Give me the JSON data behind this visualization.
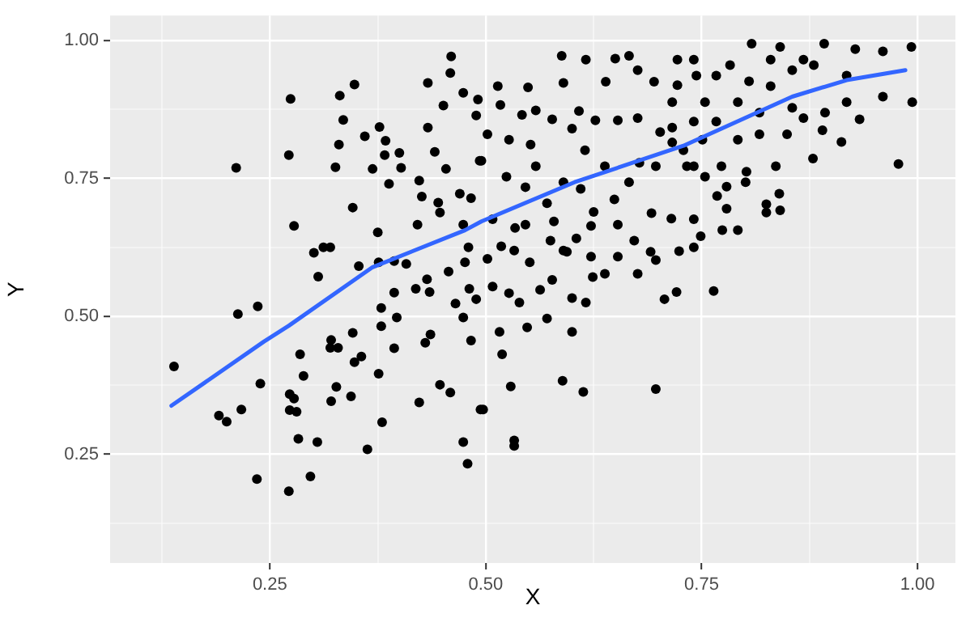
{
  "chart_data": {
    "type": "scatter",
    "xlabel": "X",
    "ylabel": "Y",
    "xlim": [
      0.065,
      1.044
    ],
    "ylim": [
      0.053,
      1.045
    ],
    "xticks": [
      {
        "value": 0.125,
        "label": null
      },
      {
        "value": 0.25,
        "label": "0.25"
      },
      {
        "value": 0.375,
        "label": null
      },
      {
        "value": 0.5,
        "label": "0.50"
      },
      {
        "value": 0.625,
        "label": null
      },
      {
        "value": 0.75,
        "label": "0.75"
      },
      {
        "value": 0.875,
        "label": null
      },
      {
        "value": 1,
        "label": "1.00"
      }
    ],
    "yticks": [
      {
        "value": 0.125,
        "label": null
      },
      {
        "value": 0.25,
        "label": "0.25"
      },
      {
        "value": 0.375,
        "label": null
      },
      {
        "value": 0.5,
        "label": "0.50"
      },
      {
        "value": 0.625,
        "label": null
      },
      {
        "value": 0.75,
        "label": "0.75"
      },
      {
        "value": 0.875,
        "label": null
      },
      {
        "value": 1,
        "label": "1.00"
      }
    ],
    "grid": true,
    "legend": false,
    "series": [
      {
        "marker": "circle",
        "color": "#000000",
        "x": [
          0.139,
          0.191,
          0.2,
          0.217,
          0.213,
          0.235,
          0.239,
          0.272,
          0.273,
          0.273,
          0.281,
          0.278,
          0.283,
          0.285,
          0.289,
          0.297,
          0.305,
          0.321,
          0.32,
          0.321,
          0.327,
          0.329,
          0.344,
          0.346,
          0.348,
          0.356,
          0.363,
          0.376,
          0.379,
          0.38,
          0.394,
          0.397,
          0.423,
          0.43,
          0.436,
          0.447,
          0.459,
          0.474,
          0.479,
          0.483,
          0.494,
          0.474,
          0.497,
          0.516,
          0.548,
          0.571,
          0.519,
          0.529,
          0.533,
          0.533,
          0.589,
          0.613,
          0.6,
          0.697,
          0.211,
          0.236,
          0.272,
          0.274,
          0.278,
          0.301,
          0.312,
          0.32,
          0.306,
          0.331,
          0.348,
          0.335,
          0.33,
          0.326,
          0.346,
          0.36,
          0.369,
          0.377,
          0.384,
          0.383,
          0.4,
          0.402,
          0.388,
          0.375,
          0.353,
          0.376,
          0.394,
          0.408,
          0.394,
          0.419,
          0.379,
          0.423,
          0.426,
          0.421,
          0.433,
          0.433,
          0.451,
          0.459,
          0.46,
          0.474,
          0.441,
          0.454,
          0.445,
          0.447,
          0.435,
          0.432,
          0.457,
          0.47,
          0.474,
          0.48,
          0.476,
          0.481,
          0.465,
          0.491,
          0.489,
          0.493,
          0.588,
          0.616,
          0.65,
          0.666,
          0.808,
          0.841,
          0.892,
          0.928,
          0.96,
          0.993,
          0.994,
          0.978,
          0.879,
          0.912,
          0.89,
          0.933,
          0.96,
          0.836,
          0.84,
          0.825,
          0.841,
          0.825,
          0.764,
          0.749,
          0.741,
          0.715,
          0.692,
          0.672,
          0.697,
          0.691,
          0.724,
          0.707,
          0.676,
          0.721,
          0.653,
          0.622,
          0.605,
          0.59,
          0.638,
          0.624,
          0.616,
          0.6,
          0.577,
          0.563,
          0.539,
          0.527,
          0.508,
          0.489,
          0.518,
          0.546,
          0.579,
          0.594,
          0.533,
          0.502,
          0.551,
          0.625,
          0.61,
          0.649,
          0.666,
          0.678,
          0.697,
          0.741,
          0.773,
          0.801,
          0.802,
          0.779,
          0.768,
          0.754,
          0.733,
          0.729,
          0.716,
          0.751,
          0.792,
          0.817,
          0.849,
          0.767,
          0.741,
          0.716,
          0.702,
          0.676,
          0.653,
          0.627,
          0.608,
          0.6,
          0.577,
          0.558,
          0.542,
          0.549,
          0.59,
          0.639,
          0.676,
          0.695,
          0.722,
          0.744,
          0.767,
          0.783,
          0.805,
          0.83,
          0.855,
          0.88,
          0.918,
          0.83,
          0.868,
          0.741,
          0.722,
          0.716,
          0.754,
          0.792,
          0.817,
          0.855,
          0.893,
          0.918,
          0.868,
          0.514,
          0.517,
          0.502,
          0.527,
          0.552,
          0.558,
          0.495,
          0.524,
          0.546,
          0.571,
          0.59,
          0.638,
          0.615,
          0.483,
          0.508,
          0.534,
          0.575,
          0.622,
          0.653,
          0.741,
          0.779,
          0.792,
          0.774
        ],
        "values": [
          0.409,
          0.32,
          0.309,
          0.331,
          0.504,
          0.205,
          0.378,
          0.183,
          0.359,
          0.33,
          0.327,
          0.351,
          0.278,
          0.431,
          0.392,
          0.21,
          0.272,
          0.457,
          0.443,
          0.346,
          0.372,
          0.443,
          0.355,
          0.47,
          0.417,
          0.427,
          0.259,
          0.396,
          0.482,
          0.308,
          0.442,
          0.498,
          0.344,
          0.452,
          0.467,
          0.376,
          0.362,
          0.272,
          0.233,
          0.456,
          0.331,
          0.498,
          0.331,
          0.472,
          0.48,
          0.496,
          0.431,
          0.373,
          0.275,
          0.265,
          0.383,
          0.363,
          0.472,
          0.368,
          0.769,
          0.518,
          0.792,
          0.894,
          0.664,
          0.615,
          0.625,
          0.625,
          0.572,
          0.9,
          0.92,
          0.856,
          0.811,
          0.77,
          0.697,
          0.826,
          0.767,
          0.843,
          0.818,
          0.792,
          0.796,
          0.769,
          0.74,
          0.652,
          0.591,
          0.598,
          0.6,
          0.595,
          0.543,
          0.55,
          0.515,
          0.746,
          0.717,
          0.666,
          0.842,
          0.923,
          0.882,
          0.941,
          0.971,
          0.905,
          0.798,
          0.767,
          0.706,
          0.688,
          0.544,
          0.567,
          0.581,
          0.722,
          0.666,
          0.625,
          0.598,
          0.55,
          0.523,
          0.893,
          0.864,
          0.782,
          0.972,
          0.965,
          0.967,
          0.972,
          0.994,
          0.988,
          0.994,
          0.984,
          0.98,
          0.988,
          0.888,
          0.776,
          0.786,
          0.816,
          0.837,
          0.857,
          0.898,
          0.772,
          0.722,
          0.703,
          0.692,
          0.688,
          0.546,
          0.645,
          0.625,
          0.677,
          0.687,
          0.637,
          0.602,
          0.617,
          0.618,
          0.531,
          0.577,
          0.544,
          0.666,
          0.664,
          0.641,
          0.619,
          0.577,
          0.571,
          0.525,
          0.533,
          0.566,
          0.548,
          0.525,
          0.542,
          0.554,
          0.531,
          0.627,
          0.666,
          0.672,
          0.617,
          0.619,
          0.604,
          0.598,
          0.689,
          0.731,
          0.712,
          0.743,
          0.778,
          0.772,
          0.772,
          0.772,
          0.743,
          0.762,
          0.735,
          0.718,
          0.753,
          0.772,
          0.801,
          0.815,
          0.82,
          0.82,
          0.83,
          0.83,
          0.853,
          0.853,
          0.842,
          0.834,
          0.859,
          0.855,
          0.855,
          0.872,
          0.84,
          0.857,
          0.873,
          0.865,
          0.915,
          0.923,
          0.925,
          0.946,
          0.925,
          0.919,
          0.936,
          0.936,
          0.955,
          0.926,
          0.917,
          0.946,
          0.955,
          0.936,
          0.965,
          0.965,
          0.965,
          0.965,
          0.888,
          0.888,
          0.888,
          0.869,
          0.878,
          0.869,
          0.888,
          0.859,
          0.917,
          0.883,
          0.83,
          0.82,
          0.811,
          0.772,
          0.782,
          0.753,
          0.734,
          0.705,
          0.743,
          0.772,
          0.801,
          0.714,
          0.676,
          0.66,
          0.637,
          0.608,
          0.608,
          0.676,
          0.695,
          0.656,
          0.656
        ]
      },
      {
        "type": "line",
        "marker": "none",
        "color": "#3366ff",
        "x": [
          0.136,
          0.243,
          0.272,
          0.369,
          0.476,
          0.495,
          0.603,
          0.729,
          0.855,
          0.918,
          0.986
        ],
        "values": [
          0.338,
          0.454,
          0.483,
          0.589,
          0.656,
          0.672,
          0.743,
          0.809,
          0.898,
          0.928,
          0.946
        ]
      }
    ]
  }
}
